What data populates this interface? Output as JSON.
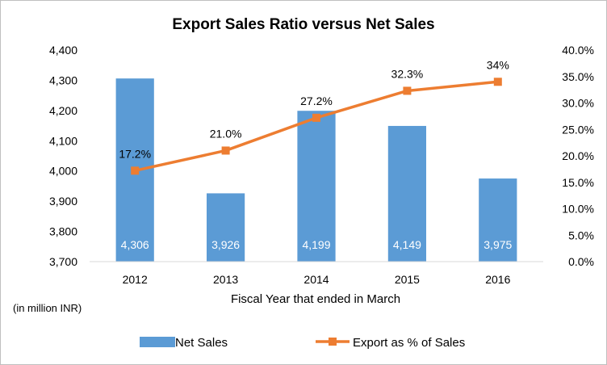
{
  "chart_data": {
    "type": "bar",
    "title": "Export Sales Ratio versus Net Sales",
    "xlabel": "Fiscal Year that ended in March",
    "note": "(in million INR)",
    "categories": [
      "2012",
      "2013",
      "2014",
      "2015",
      "2016"
    ],
    "series": [
      {
        "name": "Net Sales",
        "type": "bar",
        "axis": "left",
        "color": "#5b9bd5",
        "values": [
          4306,
          3926,
          4199,
          4149,
          3975
        ],
        "labels": [
          "4,306",
          "3,926",
          "4,199",
          "4,149",
          "3,975"
        ]
      },
      {
        "name": "Export as % of Sales",
        "type": "line",
        "axis": "right",
        "color": "#ed7d31",
        "marker": "square",
        "values": [
          17.2,
          21.0,
          27.2,
          32.3,
          34
        ],
        "labels": [
          "17.2%",
          "21.0%",
          "27.2%",
          "32.3%",
          "34%"
        ]
      }
    ],
    "y_left": {
      "range": [
        3700,
        4400
      ],
      "ticks": [
        "3,700",
        "3,800",
        "3,900",
        "4,000",
        "4,100",
        "4,200",
        "4,300",
        "4,400"
      ]
    },
    "y_right": {
      "range": [
        0,
        40
      ],
      "ticks": [
        "0.0%",
        "5.0%",
        "10.0%",
        "15.0%",
        "20.0%",
        "25.0%",
        "30.0%",
        "35.0%",
        "40.0%"
      ]
    },
    "grid": false,
    "legend": "bottom"
  }
}
